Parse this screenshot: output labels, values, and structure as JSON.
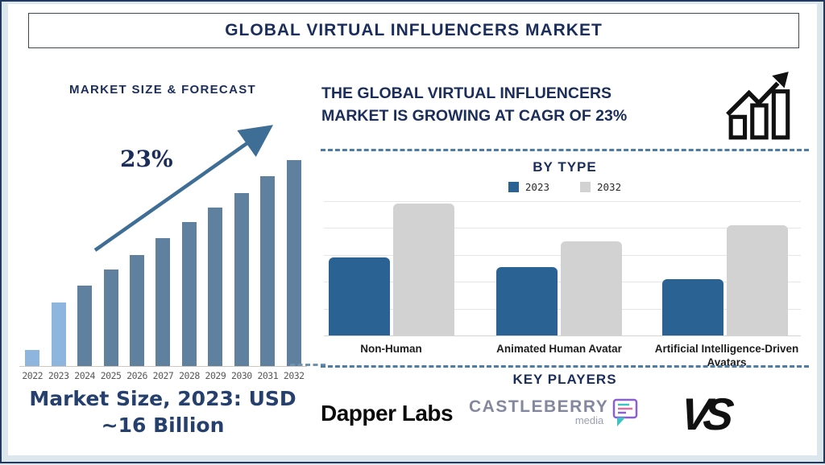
{
  "page": {
    "title": "GLOBAL VIRTUAL INFLUENCERS MARKET",
    "colors": {
      "navy": "#1b2d5a",
      "background_strip": "#dce7ed",
      "outer_border": "#24395e",
      "dashed_divider": "#4d7ca6"
    }
  },
  "left_section": {
    "title": "MARKET SIZE & FORECAST",
    "growth_label": "23%",
    "caption_line1": "Market Size, 2023: USD",
    "caption_line2": "~16 Billion"
  },
  "right_section": {
    "headline_line1": "THE GLOBAL VIRTUAL INFLUENCERS",
    "headline_line2": "MARKET IS GROWING AT CAGR OF 23%",
    "growth_icon": "bar-chart-rising-arrow-icon",
    "by_type_title": "BY TYPE",
    "legend": [
      {
        "label": "2023",
        "color": "#2a6294"
      },
      {
        "label": "2032",
        "color": "#d2d2d2"
      }
    ],
    "key_players_title": "KEY PLAYERS",
    "key_players": {
      "dapper_labs": "Dapper Labs",
      "castleberry_top": "CASTLEBERRY",
      "castleberry_sub": "media",
      "vs": "VS"
    }
  },
  "chart_data": [
    {
      "id": "market_size_forecast",
      "type": "bar",
      "title": "MARKET SIZE & FORECAST",
      "categories": [
        "2022",
        "2023",
        "2024",
        "2025",
        "2026",
        "2027",
        "2028",
        "2029",
        "2030",
        "2031",
        "2032"
      ],
      "values_relative": [
        8,
        31,
        39,
        47,
        54,
        62,
        70,
        77,
        84,
        92,
        100
      ],
      "value_note": "relative bar heights, % of 2032 bar; 2023 actual market size USD ~16 Billion; CAGR 23%",
      "bar_color": "#5f809e",
      "highlight_color": "#8db5dd",
      "highlight_years": [
        "2022",
        "2023"
      ],
      "annotation": {
        "text": "23%",
        "shape": "rising-arrow",
        "color": "#3e6d95"
      },
      "xlabel": "",
      "ylabel": "",
      "grid": false,
      "axis_color": "#cfc8bd"
    },
    {
      "id": "by_type",
      "type": "grouped_bar",
      "title": "BY TYPE",
      "categories": [
        "Non-Human",
        "Animated Human Avatar",
        "Artificial Intelligence-Driven Avatars"
      ],
      "series": [
        {
          "name": "2023",
          "values": [
            58,
            51,
            42
          ]
        },
        {
          "name": "2032",
          "values": [
            98,
            70,
            82
          ]
        }
      ],
      "series_colors": [
        "#2a6294",
        "#d2d2d2"
      ],
      "value_note": "relative units estimated from gridlines, top gridline = 100",
      "ylim": [
        0,
        100
      ],
      "grid": true,
      "legend_position": "top"
    }
  ]
}
